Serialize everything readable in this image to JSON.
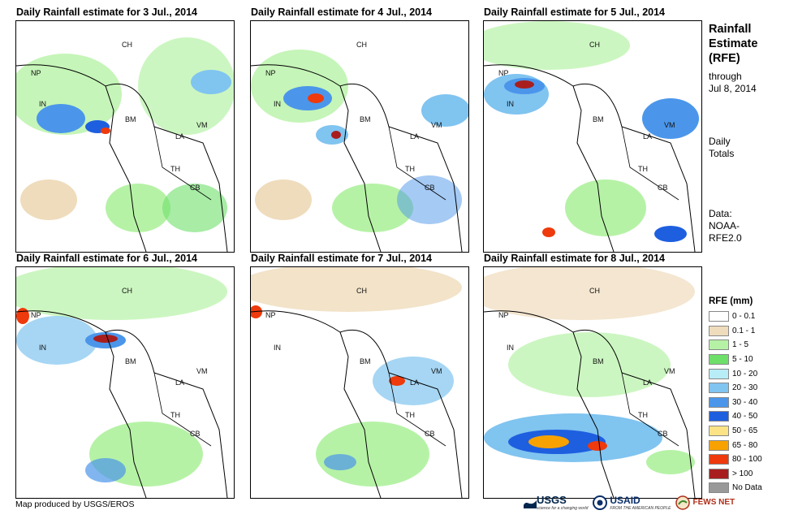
{
  "panels": [
    {
      "title": "Daily Rainfall estimate for 3 Jul., 2014"
    },
    {
      "title": "Daily Rainfall estimate for 4 Jul., 2014"
    },
    {
      "title": "Daily Rainfall estimate for 5 Jul., 2014"
    },
    {
      "title": "Daily Rainfall estimate for 6 Jul., 2014"
    },
    {
      "title": "Daily Rainfall estimate for 7 Jul., 2014"
    },
    {
      "title": "Daily Rainfall estimate for 8 Jul., 2014"
    }
  ],
  "country_labels": {
    "ch": "CH",
    "np": "NP",
    "in": "IN",
    "bm": "BM",
    "la": "LA",
    "vm": "VM",
    "th": "TH",
    "cb": "CB"
  },
  "sidebar": {
    "title_lines": [
      "Rainfall",
      "Estimate",
      "(RFE)"
    ],
    "through_lines": [
      "through",
      "Jul 8, 2014"
    ],
    "daily_lines": [
      "Daily",
      "Totals"
    ],
    "data_lines": [
      "Data:",
      "NOAA-",
      "RFE2.0"
    ]
  },
  "legend": {
    "title": "RFE (mm)",
    "items": [
      {
        "label": "0 - 0.1",
        "color": "#ffffff"
      },
      {
        "label": "0.1 - 1",
        "color": "#efdcbc"
      },
      {
        "label": "1 - 5",
        "color": "#b6f2a6"
      },
      {
        "label": "5 - 10",
        "color": "#6ee06a"
      },
      {
        "label": "10 - 20",
        "color": "#b8ecf7"
      },
      {
        "label": "20 - 30",
        "color": "#80c4f0"
      },
      {
        "label": "30 - 40",
        "color": "#4b96ea"
      },
      {
        "label": "40 - 50",
        "color": "#1e5fe0"
      },
      {
        "label": "50 - 65",
        "color": "#fbe386"
      },
      {
        "label": "65 - 80",
        "color": "#f7a200"
      },
      {
        "label": "80 - 100",
        "color": "#ee3a0c"
      },
      {
        "label": "> 100",
        "color": "#a81e1e"
      },
      {
        "label": "No Data",
        "color": "#999999"
      }
    ]
  },
  "credit": "Map produced by USGS/EROS",
  "logos": {
    "usgs": "USGS",
    "usgs_tag": "science for a changing world",
    "usaid": "USAID",
    "usaid_tag": "FROM THE AMERICAN PEOPLE",
    "fews": "FEWS NET"
  }
}
